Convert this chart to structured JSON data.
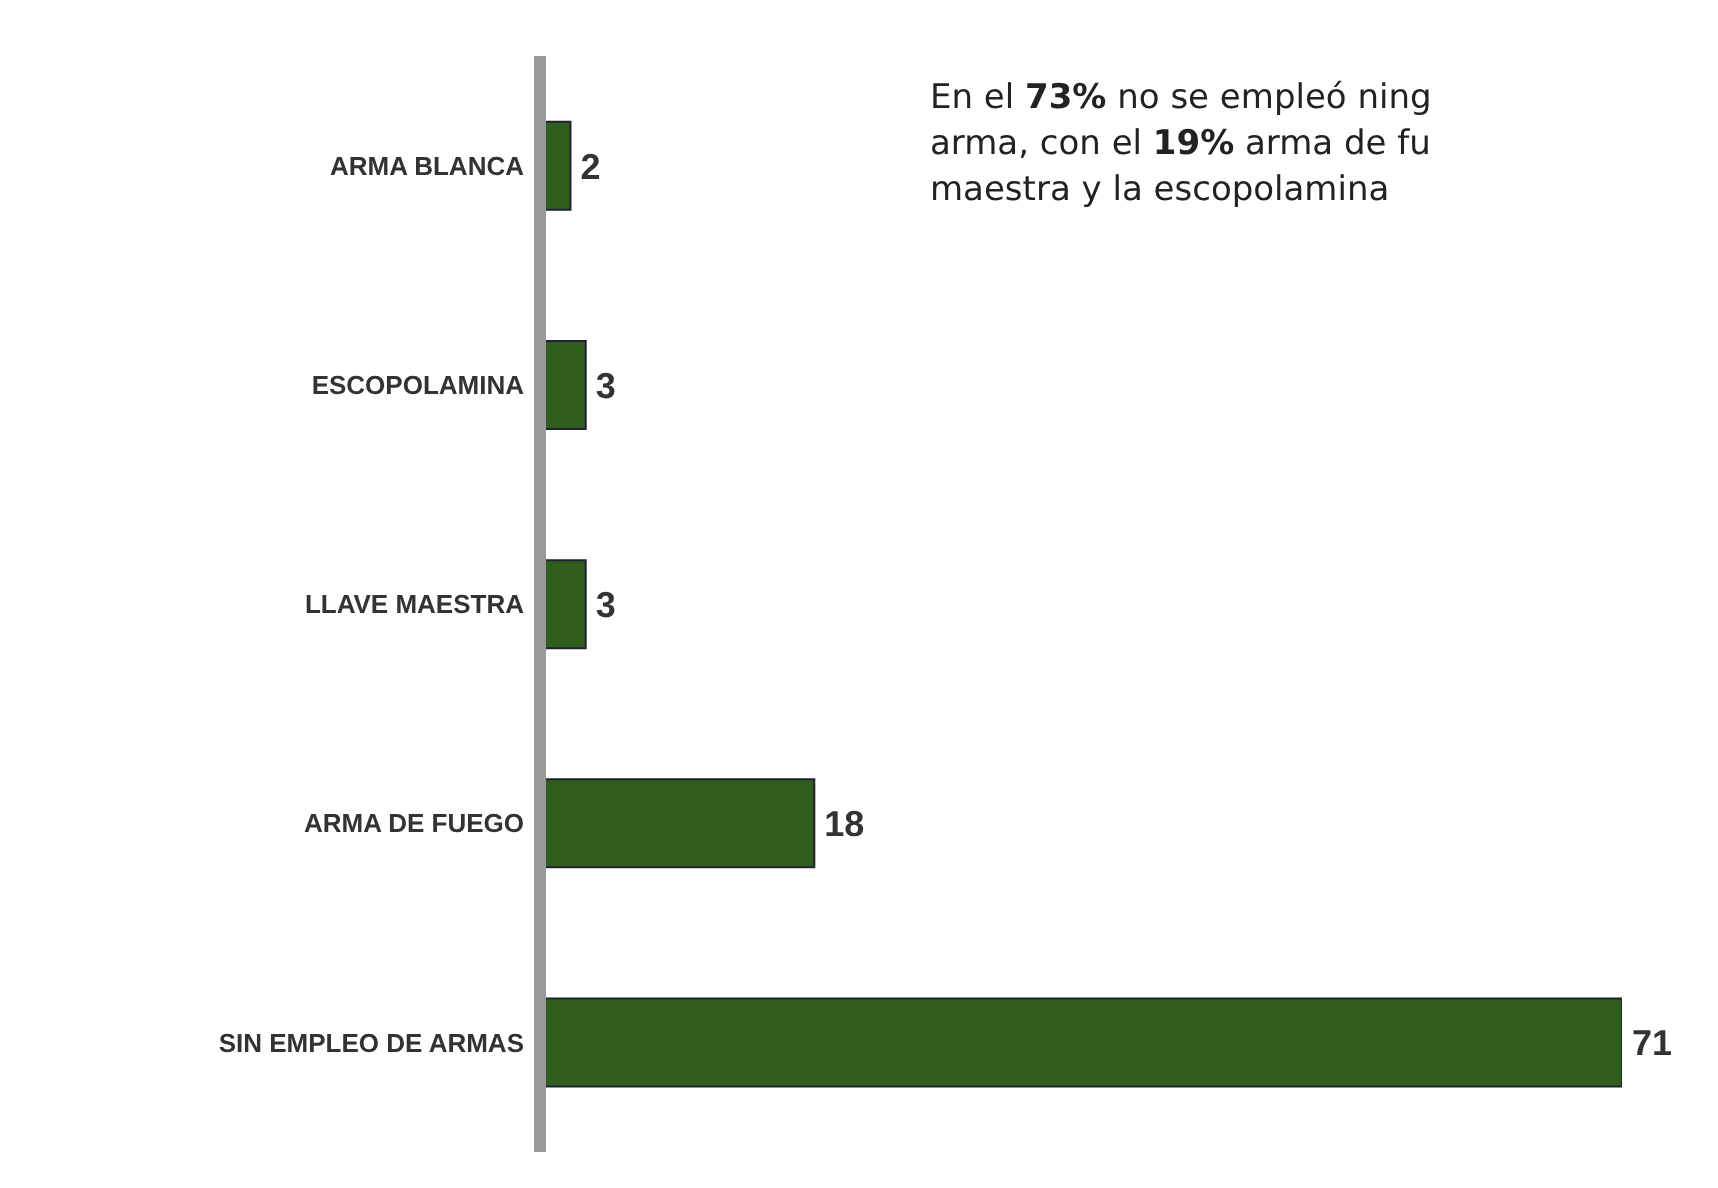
{
  "chart_data": {
    "type": "bar",
    "orientation": "horizontal",
    "data_labels": true,
    "categories": [
      "ARMA BLANCA",
      "ESCOPOLAMINA",
      "LLAVE MAESTRA",
      "ARMA DE FUEGO",
      "SIN EMPLEO DE ARMAS"
    ],
    "values": [
      2,
      3,
      3,
      18,
      71
    ],
    "color": "#2f5e1e",
    "annotations": [
      "En el 73% no se empleó ning\narma, con el 19% arma de fu\nmaestra y la escopolamina"
    ]
  }
}
